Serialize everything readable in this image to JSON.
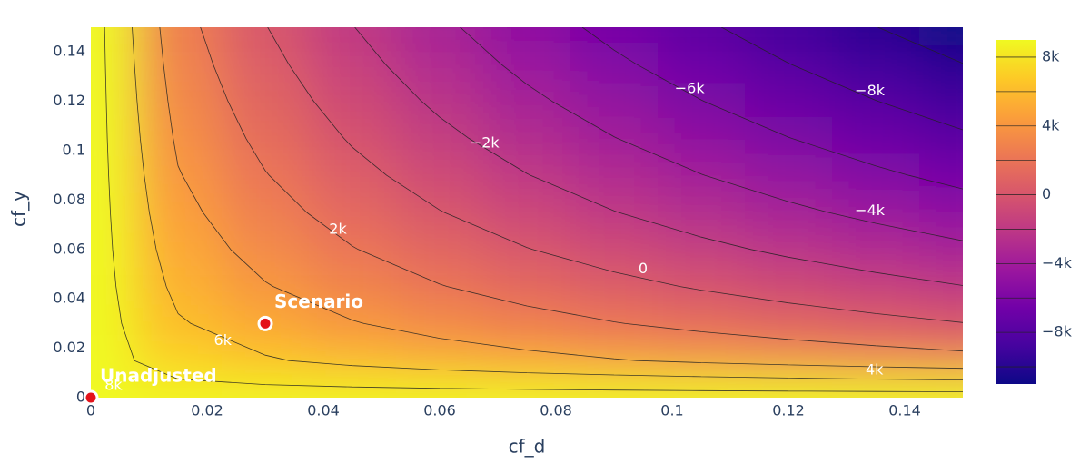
{
  "chart_data": {
    "type": "contour",
    "x_label": "cf_d",
    "y_label": "cf_y",
    "x": [
      0,
      0.015,
      0.03,
      0.045,
      0.06,
      0.075,
      0.09,
      0.105,
      0.12,
      0.135,
      0.15
    ],
    "y": [
      0,
      0.015,
      0.03,
      0.045,
      0.06,
      0.075,
      0.09,
      0.105,
      0.12,
      0.135,
      0.15
    ],
    "z": [
      [
        9000,
        9000,
        9000,
        9000,
        9000,
        9000,
        9000,
        9000,
        9000,
        9000,
        9000
      ],
      [
        9000,
        7000,
        6172,
        5536,
        5000,
        4528,
        4101,
        3708,
        3343,
        3000,
        2675
      ],
      [
        9000,
        6172,
        5000,
        4101,
        3343,
        2675,
        2072,
        1517,
        1000,
        515,
        56
      ],
      [
        9000,
        5536,
        4101,
        3000,
        2072,
        1254,
        515,
        -165,
        -798,
        -1392,
        -1954
      ],
      [
        9000,
        5000,
        3343,
        2072,
        1000,
        56,
        -798,
        -1583,
        -2314,
        -3000,
        -3649
      ],
      [
        9000,
        4528,
        2675,
        1254,
        56,
        -1000,
        -1954,
        -2832,
        -3649,
        -4416,
        -5142
      ],
      [
        9000,
        4101,
        2072,
        515,
        -798,
        -1954,
        -3000,
        -3961,
        -4856,
        -5697,
        -6492
      ],
      [
        9000,
        3708,
        1517,
        -165,
        -1583,
        -2832,
        -3961,
        -5000,
        -5967,
        -6875,
        -7733
      ],
      [
        9000,
        3343,
        1000,
        -798,
        -2314,
        -3649,
        -4856,
        -5967,
        -7000,
        -7971,
        -8889
      ],
      [
        9000,
        3000,
        515,
        -1392,
        -3000,
        -4416,
        -5697,
        -6875,
        -7971,
        -9000,
        -9974
      ],
      [
        9000,
        2675,
        56,
        -1954,
        -3649,
        -5142,
        -6492,
        -7733,
        -8889,
        -9974,
        -11000
      ]
    ],
    "xlim": [
      0,
      0.15
    ],
    "ylim": [
      0,
      0.15
    ],
    "xticks": [
      0,
      0.02,
      0.04,
      0.06,
      0.08,
      0.1,
      0.12,
      0.14
    ],
    "yticks": [
      0,
      0.02,
      0.04,
      0.06,
      0.08,
      0.1,
      0.12,
      0.14
    ],
    "zlim": [
      -11000,
      9000
    ],
    "colorscale": [
      "#0d0887",
      "#46039f",
      "#7201a8",
      "#9c179e",
      "#bd3786",
      "#d8576b",
      "#ed7953",
      "#fb9f3a",
      "#fdca26",
      "#f0f921"
    ],
    "colorbar_ticks": [
      {
        "value": -8000,
        "label": "−8k"
      },
      {
        "value": -4000,
        "label": "−4k"
      },
      0,
      {
        "value": 4000,
        "label": "4k"
      },
      {
        "value": 8000,
        "label": "8k"
      }
    ],
    "contour_levels": [
      -10000,
      -8000,
      -6000,
      -4000,
      -2000,
      0,
      2000,
      4000,
      6000,
      8000
    ],
    "contour_labels": [
      {
        "value": -8000,
        "label": "−8k",
        "x": 0.134,
        "y": 0.124
      },
      {
        "value": -6000,
        "label": "−6k",
        "x": 0.103,
        "y": 0.125
      },
      {
        "value": -4000,
        "label": "−4k",
        "x": 0.134,
        "y": 0.0756
      },
      {
        "value": -2000,
        "label": "−2k",
        "x": 0.0677,
        "y": 0.103
      },
      {
        "value": 0,
        "label": "0",
        "x": 0.095,
        "y": 0.052
      },
      {
        "value": 2000,
        "label": "2k",
        "x": 0.0425,
        "y": 0.068
      },
      {
        "value": 4000,
        "label": "4k",
        "x": 0.1348,
        "y": 0.011
      },
      {
        "value": 6000,
        "label": "6k",
        "x": 0.0227,
        "y": 0.023
      },
      {
        "value": 8000,
        "label": "8k",
        "x": 0.0039,
        "y": 0.0047
      }
    ],
    "points": [
      {
        "name": "Unadjusted",
        "x": 0,
        "y": 0,
        "color": "#e3131b"
      },
      {
        "name": "Scenario",
        "x": 0.03,
        "y": 0.03,
        "color": "#e3131b"
      }
    ]
  }
}
